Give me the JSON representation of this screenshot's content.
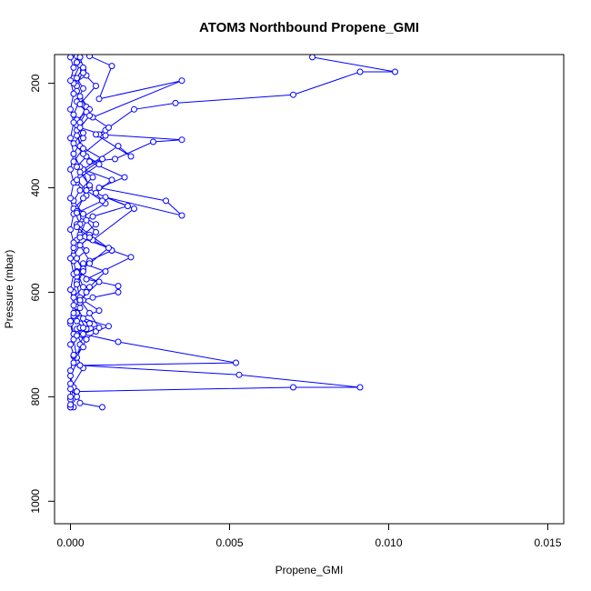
{
  "chart_data": {
    "type": "line",
    "title": "ATOM3 Northbound Propene_GMI",
    "xlabel": "Propene_GMI",
    "ylabel": "Pressure (mbar)",
    "xlim": [
      -0.0005,
      0.0155
    ],
    "ylim": [
      1043,
      145
    ],
    "y_reversed": true,
    "x_ticks": [
      0.0,
      0.005,
      0.01,
      0.015
    ],
    "x_tick_labels": [
      "0.000",
      "0.005",
      "0.010",
      "0.015"
    ],
    "y_ticks": [
      200,
      400,
      600,
      800,
      1000
    ],
    "y_tick_labels": [
      "200",
      "400",
      "600",
      "800",
      "1000"
    ],
    "grid": false,
    "legend": "none",
    "series_color": "#0000ff",
    "marker": "open-circle",
    "series": [
      {
        "points": [
          [
            0.0001,
            820
          ],
          [
            0.0,
            805
          ],
          [
            0.0001,
            782
          ],
          [
            0.0,
            760
          ],
          [
            0.0002,
            735
          ],
          [
            0.0003,
            700
          ],
          [
            0.0005,
            670
          ],
          [
            0.0002,
            640
          ],
          [
            0.0001,
            610
          ],
          [
            0.0004,
            590
          ],
          [
            0.0002,
            560
          ],
          [
            0.0006,
            540
          ],
          [
            0.0003,
            510
          ],
          [
            0.0008,
            485
          ],
          [
            0.0004,
            455
          ],
          [
            0.0011,
            430
          ],
          [
            0.0006,
            400
          ],
          [
            0.0004,
            370
          ],
          [
            0.001,
            345
          ],
          [
            0.0003,
            320
          ],
          [
            0.0002,
            290
          ],
          [
            0.0001,
            260
          ],
          [
            0.0003,
            230
          ],
          [
            0.0002,
            205
          ],
          [
            0.0004,
            175
          ],
          [
            0.0003,
            150
          ]
        ]
      },
      {
        "points": [
          [
            0.001,
            820
          ],
          [
            0.0003,
            812
          ],
          [
            0.0002,
            790
          ],
          [
            0.007,
            782
          ],
          [
            0.0091,
            782
          ],
          [
            0.0053,
            758
          ],
          [
            0.0003,
            740
          ],
          [
            0.0052,
            735
          ],
          [
            0.0015,
            695
          ],
          [
            0.0004,
            680
          ],
          [
            0.0008,
            670
          ],
          [
            0.0003,
            650
          ],
          [
            0.0009,
            635
          ],
          [
            0.0004,
            615
          ],
          [
            0.0007,
            610
          ],
          [
            0.0015,
            600
          ],
          [
            0.0015,
            588
          ],
          [
            0.0005,
            575
          ],
          [
            0.0019,
            533
          ],
          [
            0.0013,
            520
          ],
          [
            0.0007,
            500
          ],
          [
            0.002,
            440
          ],
          [
            0.0011,
            418
          ],
          [
            0.0035,
            453
          ],
          [
            0.003,
            425
          ],
          [
            0.0009,
            400
          ],
          [
            0.0017,
            380
          ],
          [
            0.0006,
            350
          ],
          [
            0.0014,
            345
          ],
          [
            0.0026,
            312
          ],
          [
            0.0035,
            308
          ],
          [
            0.0009,
            298
          ],
          [
            0.002,
            250
          ],
          [
            0.0033,
            238
          ],
          [
            0.007,
            222
          ],
          [
            0.0091,
            178
          ],
          [
            0.0102,
            178
          ],
          [
            0.0076,
            150
          ]
        ]
      },
      {
        "points": [
          [
            0.0005,
            690
          ],
          [
            0.0008,
            675
          ],
          [
            0.0012,
            665
          ],
          [
            0.0004,
            650
          ],
          [
            0.0002,
            628
          ],
          [
            0.0006,
            590
          ],
          [
            0.0011,
            560
          ],
          [
            0.0004,
            545
          ],
          [
            0.0013,
            520
          ],
          [
            0.0006,
            490
          ],
          [
            0.0002,
            470
          ],
          [
            0.0007,
            455
          ],
          [
            0.0018,
            435
          ],
          [
            0.0008,
            410
          ],
          [
            0.0013,
            385
          ],
          [
            0.0004,
            365
          ],
          [
            0.0015,
            320
          ],
          [
            0.0019,
            340
          ],
          [
            0.0008,
            298
          ],
          [
            0.0011,
            290
          ],
          [
            0.0012,
            285
          ],
          [
            0.0007,
            265
          ],
          [
            0.0035,
            195
          ],
          [
            0.0009,
            230
          ],
          [
            0.0013,
            167
          ],
          [
            0.0006,
            148
          ]
        ]
      },
      {
        "points": [
          [
            0.0,
            820
          ],
          [
            0.0002,
            800
          ],
          [
            0.0,
            785
          ],
          [
            0.0004,
            745
          ],
          [
            0.0002,
            725
          ],
          [
            0.0001,
            690
          ],
          [
            0.0,
            660
          ],
          [
            0.0003,
            630
          ],
          [
            0.0001,
            600
          ],
          [
            0.0002,
            570
          ],
          [
            0.0001,
            540
          ],
          [
            0.0005,
            520
          ],
          [
            0.0002,
            500
          ],
          [
            0.0003,
            470
          ],
          [
            0.0001,
            440
          ],
          [
            0.0005,
            415
          ],
          [
            0.0002,
            390
          ],
          [
            0.0003,
            360
          ],
          [
            0.0001,
            335
          ],
          [
            0.0004,
            305
          ],
          [
            0.0002,
            280
          ],
          [
            0.0005,
            245
          ],
          [
            0.0002,
            215
          ],
          [
            0.0001,
            190
          ],
          [
            0.0003,
            165
          ],
          [
            0.0002,
            148
          ]
        ]
      },
      {
        "points": [
          [
            0.0003,
            740
          ],
          [
            0.0001,
            722
          ],
          [
            0.0004,
            705
          ],
          [
            0.0002,
            680
          ],
          [
            0.0006,
            660
          ],
          [
            0.0001,
            645
          ],
          [
            0.0003,
            620
          ],
          [
            0.0005,
            600
          ],
          [
            0.0002,
            580
          ],
          [
            0.0004,
            555
          ],
          [
            0.0001,
            530
          ],
          [
            0.0003,
            510
          ],
          [
            0.0006,
            495
          ],
          [
            0.0002,
            475
          ],
          [
            0.0004,
            450
          ],
          [
            0.0001,
            425
          ],
          [
            0.0003,
            405
          ],
          [
            0.0007,
            380
          ],
          [
            0.0002,
            360
          ],
          [
            0.0005,
            340
          ],
          [
            0.0001,
            315
          ],
          [
            0.0004,
            295
          ],
          [
            0.0002,
            270
          ],
          [
            0.0006,
            250
          ],
          [
            0.0003,
            225
          ],
          [
            0.0001,
            200
          ],
          [
            0.0005,
            185
          ],
          [
            0.0002,
            160
          ]
        ]
      },
      {
        "points": [
          [
            0.0002,
            670
          ],
          [
            0.0003,
            668
          ],
          [
            0.0004,
            668
          ],
          [
            0.0002,
            655
          ],
          [
            0.0001,
            640
          ],
          [
            0.0003,
            610
          ],
          [
            0.0002,
            585
          ],
          [
            0.0004,
            560
          ],
          [
            0.0002,
            535
          ],
          [
            0.0001,
            515
          ],
          [
            0.0003,
            490
          ],
          [
            0.0005,
            462
          ],
          [
            0.0002,
            445
          ],
          [
            0.0004,
            420
          ],
          [
            0.0006,
            395
          ],
          [
            0.0003,
            370
          ],
          [
            0.0001,
            350
          ],
          [
            0.0004,
            325
          ],
          [
            0.0002,
            300
          ],
          [
            0.0003,
            275
          ],
          [
            0.0005,
            255
          ],
          [
            0.0002,
            235
          ],
          [
            0.0004,
            210
          ],
          [
            0.0002,
            190
          ],
          [
            0.0004,
            170
          ],
          [
            0.0003,
            150
          ]
        ]
      },
      {
        "points": [
          [
            0.0,
            820
          ],
          [
            0.0,
            815
          ],
          [
            0.0,
            800
          ],
          [
            0.0,
            775
          ],
          [
            0.0,
            750
          ],
          [
            0.0001,
            720
          ],
          [
            0.0,
            700
          ],
          [
            0.0001,
            680
          ],
          [
            0.0,
            655
          ],
          [
            0.0001,
            625
          ],
          [
            0.0,
            595
          ],
          [
            0.0001,
            565
          ],
          [
            0.0,
            535
          ],
          [
            0.0001,
            505
          ],
          [
            0.0,
            480
          ],
          [
            0.0001,
            450
          ],
          [
            0.0,
            420
          ],
          [
            0.0001,
            390
          ],
          [
            0.0,
            365
          ],
          [
            0.0001,
            335
          ],
          [
            0.0,
            305
          ],
          [
            0.0001,
            275
          ],
          [
            0.0,
            250
          ],
          [
            0.0001,
            220
          ],
          [
            0.0,
            195
          ],
          [
            0.0001,
            170
          ],
          [
            0.0,
            150
          ]
        ]
      },
      {
        "points": [
          [
            0.0001,
            735
          ],
          [
            0.0005,
            690
          ],
          [
            0.0002,
            683
          ],
          [
            0.0009,
            668
          ],
          [
            0.0006,
            640
          ],
          [
            0.0003,
            615
          ],
          [
            0.0009,
            580
          ],
          [
            0.0002,
            562
          ],
          [
            0.0006,
            545
          ],
          [
            0.0012,
            515
          ],
          [
            0.0003,
            495
          ],
          [
            0.0008,
            470
          ],
          [
            0.0002,
            448
          ],
          [
            0.001,
            425
          ],
          [
            0.0005,
            405
          ],
          [
            0.0002,
            385
          ],
          [
            0.0009,
            355
          ],
          [
            0.0004,
            335
          ],
          [
            0.0011,
            300
          ],
          [
            0.0003,
            285
          ],
          [
            0.0006,
            262
          ],
          [
            0.0003,
            240
          ],
          [
            0.0008,
            205
          ],
          [
            0.0004,
            180
          ],
          [
            0.0002,
            160
          ]
        ]
      }
    ]
  }
}
